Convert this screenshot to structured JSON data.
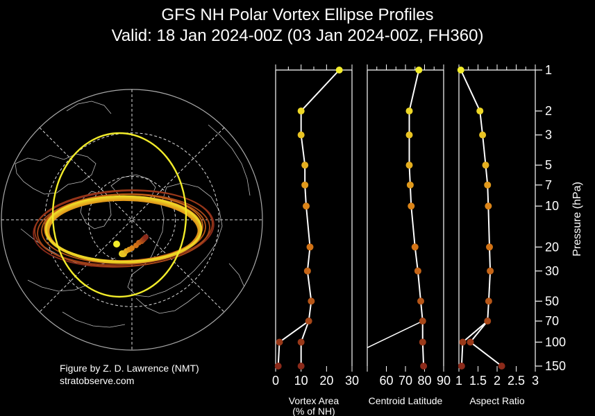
{
  "title_line1": "GFS NH Polar Vortex Ellipse Profiles",
  "title_line2": "Valid: 18 Jan 2024-00Z  (03 Jan 2024-00Z, FH360)",
  "credit_line1": "Figure by Z. D. Lawrence (NMT)",
  "credit_line2": "stratobserve.com",
  "colors": {
    "background": "#000000",
    "line": "#ffffff",
    "low_level": "#8b2a1a",
    "high_level": "#f2ec2a"
  },
  "chart_data": [
    {
      "type": "map",
      "name": "Polar stereographic ellipse map",
      "projection": "north polar stereographic",
      "latitude_circles": [
        30,
        60
      ],
      "ellipses_levels_hPa": [
        1,
        2,
        3,
        5,
        7,
        10,
        20,
        30,
        50,
        70,
        100,
        150
      ]
    },
    {
      "type": "line",
      "xlabel": "Vortex Area",
      "xlabel2": "(% of NH)",
      "xlim": [
        0,
        30
      ],
      "xticks": [
        0,
        10,
        20,
        30
      ],
      "ylabel": "Pressure (hPa)",
      "yscale": "log",
      "ylim": [
        150,
        1
      ],
      "y": [
        1,
        2,
        3,
        5,
        7,
        10,
        20,
        30,
        50,
        70,
        100,
        150
      ],
      "x": [
        25,
        10,
        10,
        11.5,
        11.5,
        12,
        13.5,
        12.5,
        14,
        13,
        10,
        10
      ],
      "extra_points": [
        {
          "x": 1.5,
          "y": 100
        },
        {
          "x": 1,
          "y": 150
        }
      ]
    },
    {
      "type": "line",
      "xlabel": "Centroid Latitude",
      "xlim": [
        50,
        90
      ],
      "xticks": [
        50,
        60,
        70,
        80,
        90
      ],
      "xticklabels": [
        "",
        "60",
        "70",
        "80",
        "90"
      ],
      "yscale": "log",
      "ylim": [
        150,
        1
      ],
      "y": [
        1,
        2,
        3,
        5,
        7,
        10,
        20,
        30,
        50,
        70,
        100,
        150
      ],
      "x": [
        77,
        72,
        72,
        72,
        72.5,
        73,
        75,
        76.5,
        78,
        79,
        79,
        79.5
      ],
      "lower_segment_end": {
        "x": 50,
        "y": 100
      }
    },
    {
      "type": "line",
      "xlabel": "Aspect Ratio",
      "xlim": [
        1,
        3
      ],
      "xticks": [
        1,
        1.5,
        2,
        2.5,
        3
      ],
      "xticklabels": [
        "1",
        "1.5",
        "2",
        "2.5",
        "3"
      ],
      "yscale": "log",
      "ylim": [
        150,
        1
      ],
      "yticks": [
        1,
        2,
        3,
        5,
        7,
        10,
        20,
        30,
        50,
        70,
        100,
        150
      ],
      "yticklabels": [
        "1",
        "2",
        "3",
        "5",
        "7",
        "10",
        "20",
        "30",
        "50",
        "70",
        "100",
        "150"
      ],
      "y": [
        1,
        2,
        3,
        5,
        7,
        10,
        20,
        30,
        50,
        70,
        100,
        150
      ],
      "x": [
        1.05,
        1.55,
        1.62,
        1.7,
        1.75,
        1.77,
        1.8,
        1.82,
        1.78,
        1.75,
        1.3,
        2.12
      ],
      "extra_points": [
        {
          "x": 1.1,
          "y": 100
        },
        {
          "x": 1.07,
          "y": 150
        }
      ]
    }
  ]
}
